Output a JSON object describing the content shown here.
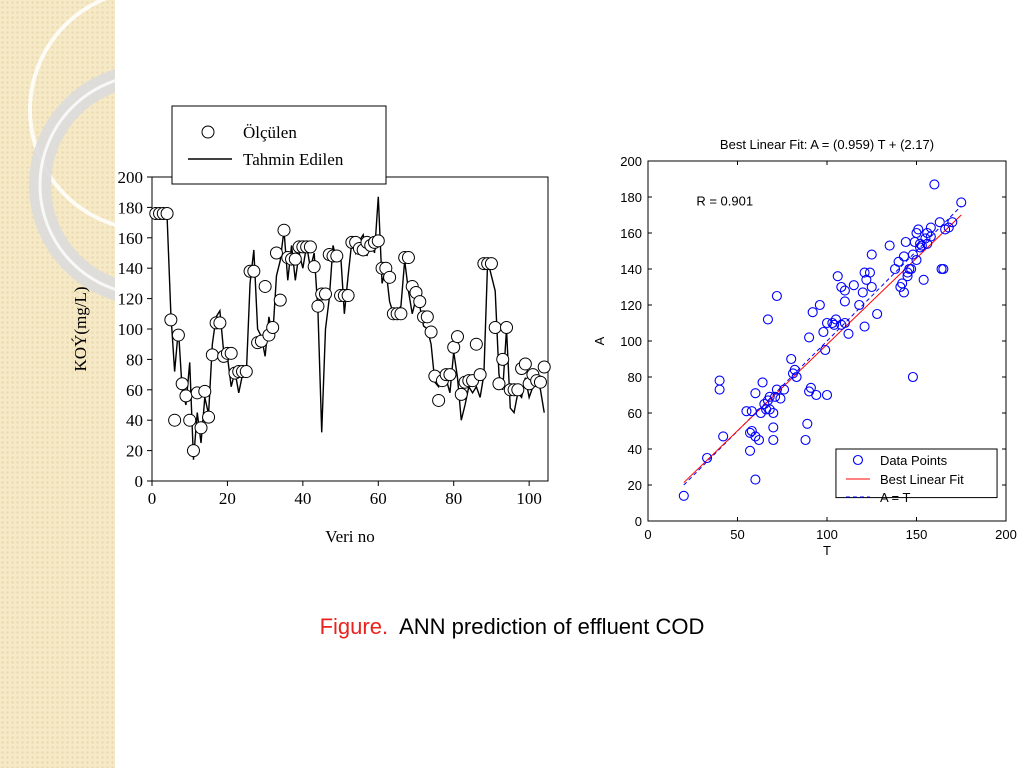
{
  "caption": {
    "label": "Figure.",
    "text": "ANN prediction of effluent COD"
  },
  "colors": {
    "accent_red": "#e8231e",
    "scatter_blue": "#0000ff",
    "fit_red": "#ff0000",
    "sidebar": "#f6e9c6"
  },
  "chart_data": [
    {
      "type": "line",
      "xlabel": "Veri no",
      "ylabel": "KOÝ(mg/L)",
      "xlim": [
        0,
        105
      ],
      "ylim": [
        0,
        200
      ],
      "xticks": [
        0,
        20,
        40,
        60,
        80,
        100
      ],
      "yticks": [
        0,
        20,
        40,
        60,
        80,
        100,
        120,
        140,
        160,
        180,
        200
      ],
      "grid": false,
      "legend_position": "top-right",
      "series": [
        {
          "name": "Ölçülen",
          "style": "open-circle",
          "x": [
            1,
            2,
            3,
            4,
            5,
            6,
            7,
            8,
            9,
            10,
            11,
            12,
            13,
            14,
            15,
            16,
            17,
            18,
            19,
            20,
            21,
            22,
            23,
            24,
            25,
            26,
            27,
            28,
            29,
            30,
            31,
            32,
            33,
            34,
            35,
            36,
            37,
            38,
            39,
            40,
            41,
            42,
            43,
            44,
            45,
            46,
            47,
            48,
            49,
            50,
            51,
            52,
            53,
            54,
            55,
            56,
            57,
            58,
            59,
            60,
            61,
            62,
            63,
            64,
            65,
            66,
            67,
            68,
            69,
            70,
            71,
            72,
            73,
            74,
            75,
            76,
            77,
            78,
            79,
            80,
            81,
            82,
            83,
            84,
            85,
            86,
            87,
            88,
            89,
            90,
            91,
            92,
            93,
            94,
            95,
            96,
            97,
            98,
            99,
            100,
            101,
            102,
            103,
            104
          ],
          "y": [
            176,
            176,
            176,
            176,
            106,
            40,
            96,
            64,
            56,
            40,
            20,
            58,
            35,
            59,
            42,
            83,
            104,
            104,
            82,
            84,
            84,
            71,
            72,
            72,
            72,
            138,
            138,
            91,
            92,
            128,
            96,
            101,
            150,
            119,
            165,
            147,
            146,
            146,
            154,
            154,
            154,
            154,
            141,
            115,
            123,
            123,
            149,
            148,
            148,
            122,
            122,
            122,
            157,
            157,
            153,
            152,
            157,
            155,
            157,
            158,
            140,
            140,
            134,
            110,
            110,
            110,
            147,
            147,
            128,
            124,
            118,
            108,
            108,
            98,
            69,
            53,
            66,
            70,
            70,
            88,
            95,
            57,
            65,
            66,
            66,
            90,
            70,
            143,
            143,
            143,
            101,
            64,
            80,
            101,
            60,
            60,
            60,
            74,
            77,
            64,
            70,
            66,
            65,
            75
          ]
        },
        {
          "name": "Tahmin Edilen",
          "style": "line",
          "x": [
            1,
            2,
            3,
            4,
            5,
            6,
            7,
            8,
            9,
            10,
            11,
            12,
            13,
            14,
            15,
            16,
            17,
            18,
            19,
            20,
            21,
            22,
            23,
            24,
            25,
            26,
            27,
            28,
            29,
            30,
            31,
            32,
            33,
            34,
            35,
            36,
            37,
            38,
            39,
            40,
            41,
            42,
            43,
            44,
            45,
            46,
            47,
            48,
            49,
            50,
            51,
            52,
            53,
            54,
            55,
            56,
            57,
            58,
            59,
            60,
            61,
            62,
            63,
            64,
            65,
            66,
            67,
            68,
            69,
            70,
            71,
            72,
            73,
            74,
            75,
            76,
            77,
            78,
            79,
            80,
            81,
            82,
            83,
            84,
            85,
            86,
            87,
            88,
            89,
            90,
            91,
            92,
            93,
            94,
            95,
            96,
            97,
            98,
            99,
            100,
            101,
            102,
            103,
            104
          ],
          "y": [
            176,
            176,
            176,
            174,
            110,
            72,
            100,
            60,
            50,
            78,
            14,
            45,
            25,
            55,
            44,
            90,
            108,
            112,
            85,
            82,
            62,
            72,
            58,
            70,
            70,
            130,
            152,
            100,
            95,
            82,
            108,
            95,
            135,
            145,
            165,
            132,
            155,
            132,
            150,
            140,
            155,
            140,
            150,
            112,
            32,
            100,
            120,
            155,
            145,
            150,
            110,
            135,
            158,
            150,
            158,
            162,
            148,
            160,
            150,
            187,
            130,
            140,
            118,
            110,
            112,
            115,
            145,
            125,
            110,
            120,
            115,
            102,
            100,
            90,
            65,
            62,
            72,
            67,
            58,
            85,
            68,
            40,
            50,
            62,
            58,
            62,
            55,
            70,
            145,
            135,
            125,
            70,
            60,
            100,
            48,
            45,
            58,
            55,
            68,
            55,
            62,
            70,
            60,
            45
          ]
        }
      ]
    },
    {
      "type": "scatter",
      "title": "Best Linear Fit:  A = (0.959) T + (2.17)",
      "annotation": "R = 0.901",
      "xlabel": "T",
      "ylabel": "A",
      "xlim": [
        0,
        200
      ],
      "ylim": [
        0,
        200
      ],
      "xticks": [
        0,
        50,
        100,
        150,
        200
      ],
      "yticks": [
        0,
        20,
        40,
        60,
        80,
        100,
        120,
        140,
        160,
        180,
        200
      ],
      "grid": false,
      "legend_position": "bottom-right",
      "series": [
        {
          "name": "Data Points",
          "style": "open-circle",
          "x": [
            20,
            33,
            40,
            40,
            42,
            55,
            57,
            57,
            58,
            58,
            60,
            60,
            60,
            62,
            63,
            64,
            65,
            66,
            67,
            67,
            68,
            68,
            70,
            70,
            70,
            71,
            72,
            72,
            74,
            76,
            80,
            81,
            82,
            83,
            88,
            89,
            90,
            90,
            91,
            92,
            94,
            96,
            98,
            99,
            100,
            100,
            103,
            104,
            105,
            106,
            108,
            108,
            110,
            110,
            110,
            112,
            115,
            118,
            120,
            121,
            121,
            122,
            124,
            125,
            125,
            128,
            135,
            138,
            140,
            141,
            142,
            143,
            143,
            144,
            145,
            145,
            146,
            147,
            148,
            148,
            149,
            150,
            150,
            151,
            152,
            152,
            153,
            154,
            155,
            156,
            156,
            158,
            158,
            160,
            163,
            164,
            165,
            166,
            168,
            170,
            175
          ],
          "y": [
            14,
            35,
            78,
            73,
            47,
            61,
            49,
            39,
            50,
            61,
            71,
            47,
            23,
            45,
            60,
            77,
            65,
            62,
            67,
            112,
            62,
            69,
            60,
            52,
            45,
            69,
            125,
            73,
            68,
            73,
            90,
            82,
            84,
            80,
            45,
            54,
            72,
            102,
            74,
            116,
            70,
            120,
            105,
            95,
            110,
            70,
            110,
            109,
            112,
            136,
            109,
            130,
            122,
            128,
            110,
            104,
            131,
            120,
            127,
            138,
            108,
            134,
            138,
            130,
            148,
            115,
            153,
            140,
            144,
            130,
            132,
            147,
            127,
            155,
            136,
            138,
            140,
            140,
            80,
            148,
            155,
            160,
            145,
            162,
            154,
            152,
            153,
            134,
            157,
            160,
            154,
            163,
            158,
            187,
            166,
            140,
            140,
            162,
            163,
            166,
            177
          ]
        },
        {
          "name": "Best Linear Fit",
          "style": "solid-line",
          "slope": 0.959,
          "intercept": 2.17,
          "x": [
            20,
            175
          ]
        },
        {
          "name": "A = T",
          "style": "dashed-line",
          "slope": 1,
          "intercept": 0,
          "x": [
            20,
            175
          ]
        }
      ]
    }
  ]
}
